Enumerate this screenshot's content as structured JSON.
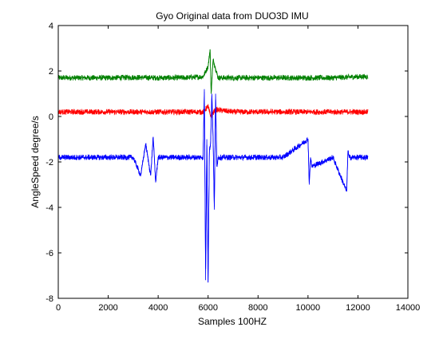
{
  "chart_data": {
    "type": "line",
    "title": "Gyo Original data from DUO3D IMU",
    "xlabel": "Samples 100HZ",
    "ylabel": "AngleSpeed degree/s",
    "xlim": [
      0,
      14000
    ],
    "ylim": [
      -8,
      4
    ],
    "xticks": [
      0,
      2000,
      4000,
      6000,
      8000,
      10000,
      12000,
      14000
    ],
    "yticks": [
      -8,
      -6,
      -4,
      -2,
      0,
      2,
      4
    ],
    "grid": false,
    "legend": "none",
    "series": [
      {
        "color": "#008000",
        "x": [
          0,
          1000,
          2000,
          3000,
          4000,
          5000,
          5800,
          6000,
          6080,
          6120,
          6200,
          6400,
          7000,
          8000,
          9000,
          10000,
          11000,
          12000,
          12400
        ],
        "values": [
          1.7,
          1.7,
          1.7,
          1.72,
          1.7,
          1.7,
          1.75,
          2.2,
          2.95,
          1.0,
          2.5,
          1.7,
          1.7,
          1.7,
          1.7,
          1.7,
          1.7,
          1.75,
          1.75
        ],
        "noise": 0.12
      },
      {
        "color": "#ff0000",
        "x": [
          0,
          1000,
          2000,
          3000,
          4000,
          5000,
          5800,
          6000,
          6100,
          6300,
          7000,
          8000,
          9000,
          10000,
          11000,
          12000,
          12400
        ],
        "values": [
          0.2,
          0.2,
          0.2,
          0.2,
          0.2,
          0.2,
          0.2,
          0.45,
          0.0,
          0.3,
          0.2,
          0.2,
          0.2,
          0.2,
          0.2,
          0.2,
          0.2
        ],
        "noise": 0.12
      },
      {
        "color": "#0000ff",
        "x": [
          0,
          1000,
          2000,
          3000,
          3300,
          3500,
          3700,
          3800,
          3900,
          4000,
          5000,
          5800,
          5850,
          5900,
          5950,
          6000,
          6050,
          6100,
          6150,
          6200,
          6250,
          6300,
          6350,
          6400,
          7000,
          8000,
          9000,
          10000,
          10050,
          10100,
          10150,
          11000,
          11550,
          11600,
          11650,
          12000,
          12400
        ],
        "values": [
          -1.8,
          -1.8,
          -1.8,
          -1.8,
          -2.6,
          -1.2,
          -2.6,
          -0.9,
          -2.9,
          -1.8,
          -1.8,
          -1.8,
          1.2,
          -7.2,
          -1.0,
          -7.3,
          -1.5,
          -1.2,
          1.0,
          -1.0,
          -4.1,
          1.0,
          -2.2,
          -1.8,
          -1.8,
          -1.8,
          -1.8,
          -1.0,
          -3.0,
          -1.8,
          -2.2,
          -1.8,
          -3.3,
          -1.5,
          -1.8,
          -1.8,
          -1.8
        ],
        "noise": 0.12
      }
    ]
  }
}
